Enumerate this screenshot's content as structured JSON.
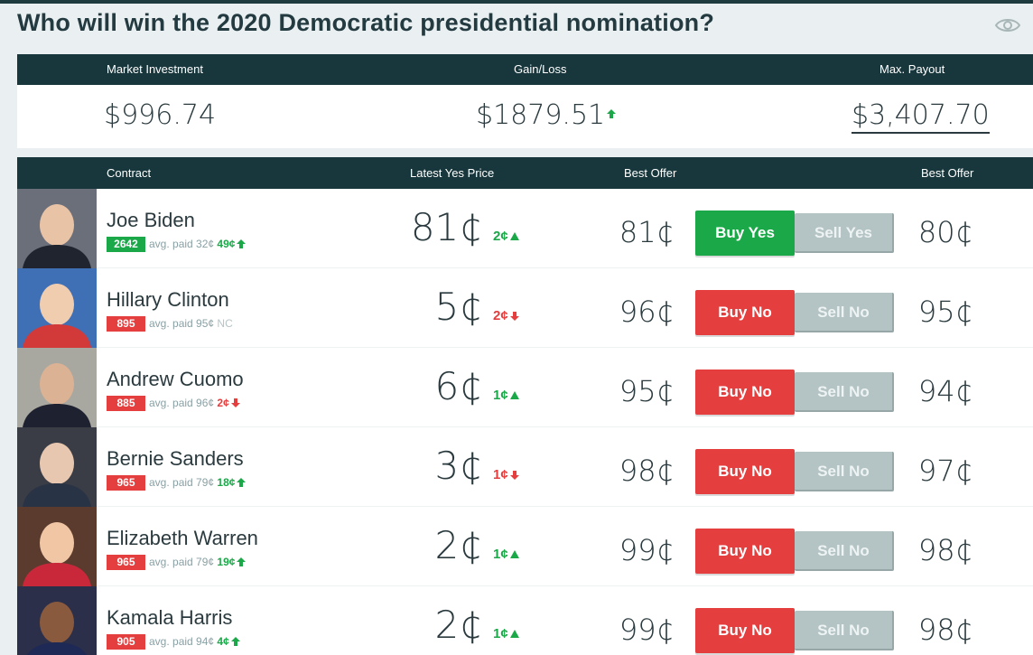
{
  "page": {
    "title": "Who will win the 2020 Democratic presidential nomination?",
    "watch_icon": "eye-icon"
  },
  "summary": {
    "investment_label": "Market Investment",
    "investment_value": "$996.74",
    "gain_label": "Gain/Loss",
    "gain_value": "$1879.51",
    "gain_direction": "up",
    "payout_label": "Max. Payout",
    "payout_value": "$3,407.70"
  },
  "table": {
    "headers": {
      "contract": "Contract",
      "latest_yes": "Latest Yes Price",
      "best_offer_buy": "Best Offer",
      "best_offer_sell": "Best Offer"
    },
    "rows": [
      {
        "name": "Joe Biden",
        "shares": "2642",
        "share_type": "yes",
        "avg": "avg. paid 32¢",
        "avg_change": "49¢",
        "avg_dir": "up",
        "price": "81¢",
        "price_change": "2¢",
        "price_dir": "up",
        "buy_offer": "81¢",
        "buy_label": "Buy Yes",
        "sell_label": "Sell Yes",
        "sell_offer": "80¢"
      },
      {
        "name": "Hillary Clinton",
        "shares": "895",
        "share_type": "no",
        "avg": "avg. paid 95¢",
        "avg_change": "NC",
        "avg_dir": "none",
        "price": "5¢",
        "price_change": "2¢",
        "price_dir": "down",
        "buy_offer": "96¢",
        "buy_label": "Buy No",
        "sell_label": "Sell No",
        "sell_offer": "95¢"
      },
      {
        "name": "Andrew Cuomo",
        "shares": "885",
        "share_type": "no",
        "avg": "avg. paid 96¢",
        "avg_change": "2¢",
        "avg_dir": "down",
        "price": "6¢",
        "price_change": "1¢",
        "price_dir": "up",
        "buy_offer": "95¢",
        "buy_label": "Buy No",
        "sell_label": "Sell No",
        "sell_offer": "94¢"
      },
      {
        "name": "Bernie Sanders",
        "shares": "965",
        "share_type": "no",
        "avg": "avg. paid 79¢",
        "avg_change": "18¢",
        "avg_dir": "up",
        "price": "3¢",
        "price_change": "1¢",
        "price_dir": "down",
        "buy_offer": "98¢",
        "buy_label": "Buy No",
        "sell_label": "Sell No",
        "sell_offer": "97¢"
      },
      {
        "name": "Elizabeth Warren",
        "shares": "965",
        "share_type": "no",
        "avg": "avg. paid 79¢",
        "avg_change": "19¢",
        "avg_dir": "up",
        "price": "2¢",
        "price_change": "1¢",
        "price_dir": "up",
        "buy_offer": "99¢",
        "buy_label": "Buy No",
        "sell_label": "Sell No",
        "sell_offer": "98¢"
      },
      {
        "name": "Kamala Harris",
        "shares": "905",
        "share_type": "no",
        "avg": "avg. paid 94¢",
        "avg_change": "4¢",
        "avg_dir": "up",
        "price": "2¢",
        "price_change": "1¢",
        "price_dir": "up",
        "buy_offer": "99¢",
        "buy_label": "Buy No",
        "sell_label": "Sell No",
        "sell_offer": "98¢"
      }
    ]
  },
  "colors": {
    "header_bg": "#18373c",
    "green": "#1aa848",
    "red": "#e53e3e",
    "sell_grey": "#b4c3c4"
  }
}
